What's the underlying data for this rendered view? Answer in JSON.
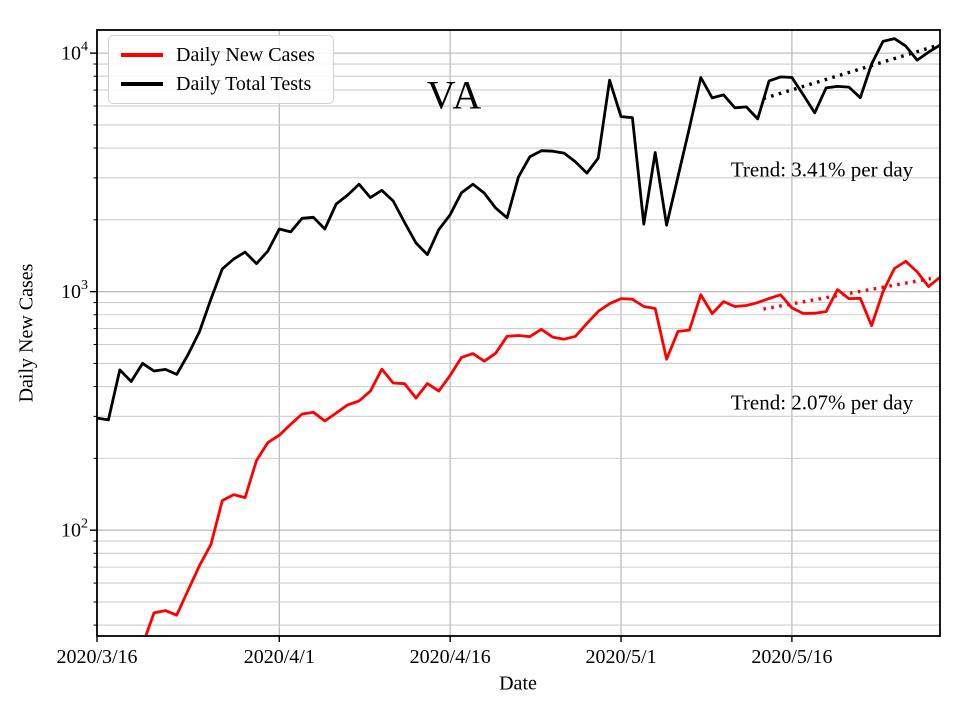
{
  "colors": {
    "background": "#ffffff",
    "axis": "#000000",
    "grid_major": "#b0b0b0",
    "grid_minor": "#cdcdcd",
    "cases": "#ff0000",
    "tests": "#000000"
  },
  "chart_data": {
    "type": "line",
    "title": "VA",
    "xlabel": "Date",
    "ylabel": "Daily New Cases",
    "y_scale": "log",
    "ylim": [
      36,
      12500
    ],
    "x_range_days": [
      0,
      74
    ],
    "x_start_date": "2020/3/16",
    "grid": {
      "major": true,
      "minor": true
    },
    "legend": {
      "position": "upper-left"
    },
    "x_ticks": [
      {
        "day": 0,
        "label": "2020/3/16"
      },
      {
        "day": 16,
        "label": "2020/4/1"
      },
      {
        "day": 31,
        "label": "2020/4/16"
      },
      {
        "day": 46,
        "label": "2020/5/1"
      },
      {
        "day": 61,
        "label": "2020/5/16"
      }
    ],
    "y_ticks": [
      {
        "value": 100,
        "base": "10",
        "exp": "2"
      },
      {
        "value": 1000,
        "base": "10",
        "exp": "3"
      },
      {
        "value": 10000,
        "base": "10",
        "exp": "4"
      }
    ],
    "series": [
      {
        "name": "Daily New Cases",
        "color": "#ff0000",
        "values": [
          null,
          null,
          null,
          null,
          33,
          45,
          46,
          44,
          56,
          71,
          87,
          133,
          141,
          137,
          196,
          233,
          250,
          278,
          307,
          312,
          287,
          310,
          335,
          348,
          383,
          473,
          414,
          411,
          358,
          412,
          383,
          445,
          530,
          550,
          511,
          552,
          650,
          655,
          648,
          695,
          645,
          632,
          650,
          736,
          826,
          890,
          935,
          930,
          866,
          850,
          521,
          681,
          690,
          971,
          809,
          908,
          866,
          875,
          900,
          936,
          970,
          855,
          810,
          812,
          825,
          1020,
          935,
          938,
          720,
          1000,
          1250,
          1340,
          1210,
          1050,
          1150
        ]
      },
      {
        "name": "Daily Total Tests",
        "color": "#000000",
        "values": [
          295,
          290,
          470,
          420,
          500,
          465,
          472,
          450,
          545,
          680,
          930,
          1245,
          1370,
          1465,
          1310,
          1480,
          1830,
          1780,
          2030,
          2050,
          1830,
          2330,
          2540,
          2820,
          2480,
          2660,
          2400,
          1950,
          1600,
          1430,
          1820,
          2100,
          2600,
          2820,
          2590,
          2240,
          2040,
          3030,
          3680,
          3900,
          3880,
          3810,
          3500,
          3140,
          3630,
          7700,
          5420,
          5360,
          1920,
          3830,
          1900,
          3040,
          4860,
          7900,
          6490,
          6680,
          5900,
          5950,
          5300,
          7650,
          7950,
          7900,
          6680,
          5620,
          7150,
          7250,
          7200,
          6500,
          9000,
          11200,
          11500,
          10700,
          9350,
          10100,
          10800
        ]
      }
    ],
    "trend_lines": [
      {
        "name": "tests-trend",
        "label": "Trend: 3.41% per day",
        "color": "#000000",
        "rate_percent_per_day": 3.41,
        "start_day": 58.5,
        "start_value": 6450,
        "end_day": 74,
        "end_value": 10850,
        "style": "dotted"
      },
      {
        "name": "cases-trend",
        "label": "Trend: 2.07% per day",
        "color": "#ff0000",
        "rate_percent_per_day": 2.07,
        "start_day": 58.5,
        "start_value": 845,
        "end_day": 73.2,
        "end_value": 1135,
        "style": "dotted"
      }
    ]
  }
}
